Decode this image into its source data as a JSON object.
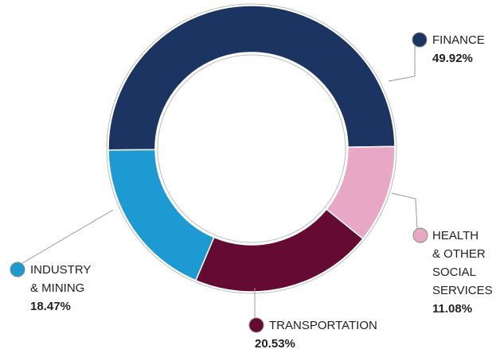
{
  "chart_data": {
    "type": "donut",
    "categories": [
      "FINANCE",
      "HEALTH\n& OTHER\nSOCIAL\nSERVICES",
      "TRANSPORTATION",
      "INDUSTRY\n& MINING"
    ],
    "values": [
      49.92,
      11.08,
      20.53,
      18.47
    ],
    "value_labels": [
      "49.92%",
      "11.08%",
      "20.53%",
      "18.47%"
    ],
    "colors": [
      "#1c3461",
      "#e8a7c5",
      "#650a32",
      "#1e9ad3"
    ]
  }
}
